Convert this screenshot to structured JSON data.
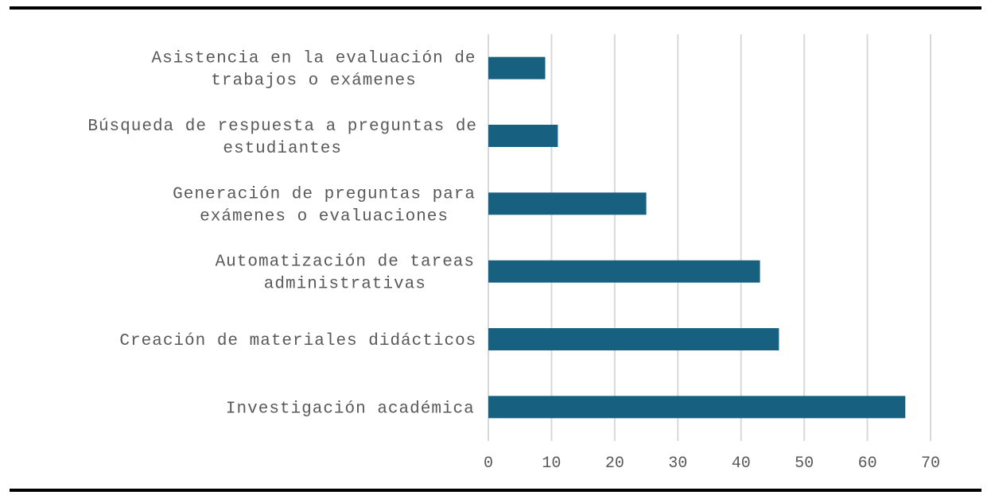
{
  "chart_data": {
    "type": "bar",
    "orientation": "horizontal",
    "categories": [
      [
        "Asistencia en la evaluación de",
        "trabajos o exámenes"
      ],
      [
        "Búsqueda de respuesta a preguntas de",
        "estudiantes"
      ],
      [
        "Generación de preguntas para",
        "exámenes o evaluaciones"
      ],
      [
        "Automatización de tareas",
        "administrativas"
      ],
      [
        "Creación de materiales didácticos"
      ],
      [
        "Investigación académica"
      ]
    ],
    "values": [
      9,
      11,
      25,
      43,
      46,
      66
    ],
    "xlim": [
      0,
      70
    ],
    "xticks": [
      0,
      10,
      20,
      30,
      40,
      50,
      60,
      70
    ],
    "grid": "vertical",
    "bar_color": "#17607f",
    "grid_color": "#d9d9d9",
    "text_color": "#595959"
  }
}
